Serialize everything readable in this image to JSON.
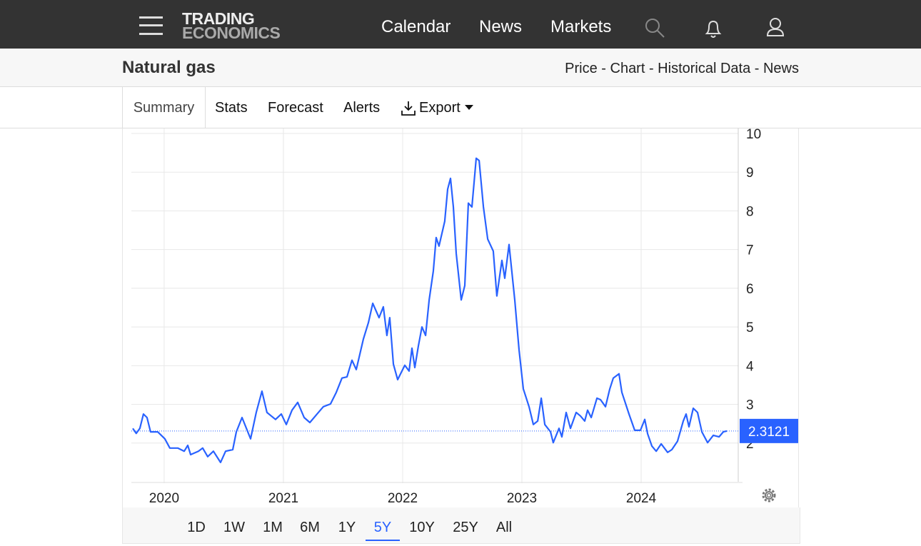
{
  "header": {
    "logo_top": "TRADING",
    "logo_bottom": "ECONOMICS",
    "nav": [
      "Calendar",
      "News",
      "Markets"
    ]
  },
  "page": {
    "title": "Natural gas",
    "links": "Price - Chart - Historical Data - News"
  },
  "tabs": [
    "Summary",
    "Stats",
    "Forecast",
    "Alerts",
    "Export"
  ],
  "ranges": [
    "1D",
    "1W",
    "1M",
    "6M",
    "1Y",
    "5Y",
    "10Y",
    "25Y",
    "All"
  ],
  "active_range": "5Y",
  "chart_data": {
    "type": "line",
    "color": "#2962ff",
    "x": [
      2019.737,
      2019.766,
      2019.796,
      2019.826,
      2019.856,
      2019.886,
      2019.946,
      2020.006,
      2020.048,
      2020.114,
      2020.168,
      2020.198,
      2020.222,
      2020.287,
      2020.323,
      2020.365,
      2020.413,
      2020.473,
      2020.515,
      2020.575,
      2020.605,
      2020.653,
      2020.725,
      2020.772,
      2020.82,
      2020.862,
      2020.934,
      2020.982,
      2021.024,
      2021.072,
      2021.12,
      2021.174,
      2021.222,
      2021.293,
      2021.335,
      2021.395,
      2021.443,
      2021.491,
      2021.533,
      2021.575,
      2021.611,
      2021.671,
      2021.713,
      2021.749,
      2021.802,
      2021.838,
      2021.868,
      2021.892,
      2021.922,
      2021.958,
      2022.018,
      2022.054,
      2022.078,
      2022.102,
      2022.132,
      2022.162,
      2022.192,
      2022.222,
      2022.257,
      2022.281,
      2022.305,
      2022.353,
      2022.377,
      2022.401,
      2022.425,
      2022.449,
      2022.491,
      2022.521,
      2022.551,
      2022.581,
      2022.617,
      2022.641,
      2022.677,
      2022.713,
      2022.76,
      2022.79,
      2022.832,
      2022.856,
      2022.892,
      2022.94,
      2022.976,
      2023.012,
      2023.06,
      2023.096,
      2023.132,
      2023.162,
      2023.192,
      2023.24,
      2023.263,
      2023.311,
      2023.335,
      2023.371,
      2023.407,
      2023.455,
      2023.491,
      2023.527,
      2023.551,
      2023.581,
      2023.629,
      2023.659,
      2023.701,
      2023.737,
      2023.766,
      2023.814,
      2023.838,
      2023.898,
      2023.946,
      2023.994,
      2024.03,
      2024.054,
      2024.09,
      2024.126,
      2024.168,
      2024.222,
      2024.257,
      2024.305,
      2024.353,
      2024.377,
      2024.401,
      2024.437,
      2024.473,
      2024.509,
      2024.557,
      2024.605,
      2024.653,
      2024.689,
      2024.719
    ],
    "values": [
      2.38,
      2.25,
      2.38,
      2.75,
      2.66,
      2.29,
      2.29,
      2.11,
      1.87,
      1.87,
      1.79,
      1.94,
      1.7,
      1.79,
      1.87,
      1.65,
      1.79,
      1.5,
      1.79,
      1.83,
      2.29,
      2.66,
      2.11,
      2.79,
      3.34,
      2.79,
      2.61,
      2.75,
      2.48,
      2.85,
      3.05,
      2.66,
      2.53,
      2.79,
      2.94,
      3.01,
      3.31,
      3.68,
      3.71,
      4.14,
      3.9,
      4.69,
      5.11,
      5.61,
      5.24,
      5.52,
      4.78,
      5.24,
      4.04,
      3.64,
      4.01,
      3.86,
      4.45,
      3.95,
      4.51,
      5.0,
      4.78,
      5.7,
      6.44,
      7.31,
      7.09,
      7.73,
      8.56,
      8.84,
      8.1,
      6.9,
      5.7,
      6.07,
      8.2,
      8.1,
      9.36,
      9.3,
      8.1,
      7.27,
      6.96,
      5.8,
      6.72,
      6.26,
      7.13,
      5.7,
      4.41,
      3.4,
      2.94,
      2.48,
      2.57,
      3.16,
      2.48,
      2.29,
      2.01,
      2.38,
      2.16,
      2.79,
      2.38,
      2.79,
      2.7,
      2.57,
      2.85,
      2.66,
      3.16,
      3.12,
      2.94,
      3.4,
      3.68,
      3.79,
      3.31,
      2.75,
      2.33,
      2.33,
      2.61,
      2.24,
      1.92,
      1.79,
      1.98,
      1.76,
      1.83,
      2.05,
      2.57,
      2.75,
      2.42,
      2.9,
      2.79,
      2.29,
      2.01,
      2.2,
      2.16,
      2.29,
      2.3121
    ],
    "xlim": [
      2019.725,
      2024.814
    ],
    "ylim": [
      1,
      10
    ],
    "xticks": [
      2020,
      2021,
      2022,
      2023,
      2024
    ],
    "yticks": [
      2,
      3,
      4,
      5,
      6,
      7,
      8,
      9,
      10
    ],
    "grid": true
  }
}
